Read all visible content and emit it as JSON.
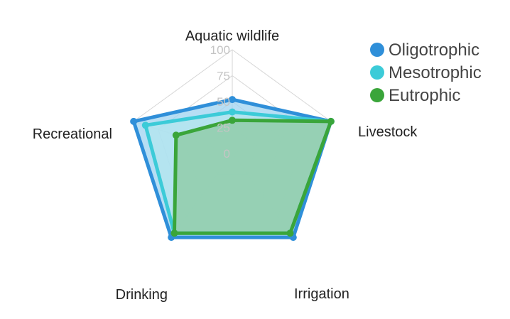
{
  "chart_data": {
    "type": "radar",
    "axes": [
      "Aquatic wildlife",
      "Livestock",
      "Irrigation",
      "Drinking",
      "Recreational"
    ],
    "r_ticks": [
      "0",
      "25",
      "50",
      "75",
      "100"
    ],
    "r_range": [
      0,
      100
    ],
    "legend_position": "top-right",
    "series": [
      {
        "name": "Oligotrophic",
        "color": "#2f8fd9",
        "fill": "#9fd3f0",
        "values": [
          52,
          100,
          100,
          100,
          100
        ]
      },
      {
        "name": "Mesotrophic",
        "color": "#3ccbd8",
        "fill": "#b3e6ef",
        "values": [
          40,
          100,
          95,
          95,
          88
        ]
      },
      {
        "name": "Eutrophic",
        "color": "#3aa53a",
        "fill": "#8cc9a0",
        "values": [
          32,
          100,
          95,
          95,
          57
        ]
      }
    ]
  }
}
